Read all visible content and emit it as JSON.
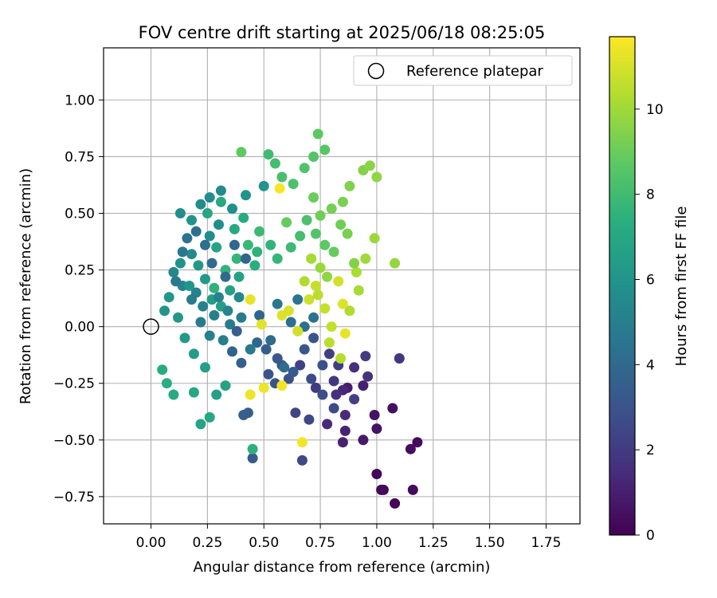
{
  "chart_data": {
    "type": "scatter",
    "title": "FOV centre drift starting at 2025/06/18 08:25:05",
    "xlabel": "Angular distance from reference (arcmin)",
    "ylabel": "Rotation from reference (arcmin)",
    "xlim": [
      -0.21,
      1.9
    ],
    "ylim": [
      -0.87,
      1.23
    ],
    "xticks": [
      "0.00",
      "0.25",
      "0.50",
      "0.75",
      "1.00",
      "1.25",
      "1.50",
      "1.75"
    ],
    "yticks": [
      "−0.75",
      "−0.50",
      "−0.25",
      "0.00",
      "0.25",
      "0.50",
      "0.75",
      "1.00"
    ],
    "grid": true,
    "legend": {
      "placement": "top-right",
      "entries": [
        "Reference platepar"
      ]
    },
    "colorbar": {
      "label": "Hours from first FF file",
      "range": [
        0,
        11.7
      ],
      "ticks": [
        "0",
        "2",
        "4",
        "6",
        "8",
        "10"
      ],
      "colormap": "viridis"
    },
    "reference_point": {
      "x": 0.0,
      "y": 0.0,
      "label": "Reference platepar"
    },
    "point_columns": [
      "x",
      "y",
      "hours"
    ],
    "points": [
      [
        1.08,
        -0.78,
        0.1
      ],
      [
        1.0,
        -0.65,
        0.2
      ],
      [
        1.03,
        -0.72,
        0.2
      ],
      [
        1.02,
        -0.72,
        0.3
      ],
      [
        1.16,
        -0.72,
        0.3
      ],
      [
        1.18,
        -0.51,
        0.3
      ],
      [
        1.15,
        -0.54,
        0.4
      ],
      [
        1.07,
        -0.36,
        0.5
      ],
      [
        0.99,
        -0.39,
        0.6
      ],
      [
        1.0,
        -0.45,
        0.6
      ],
      [
        0.94,
        -0.5,
        0.8
      ],
      [
        0.87,
        -0.27,
        0.9
      ],
      [
        0.94,
        -0.26,
        1.0
      ],
      [
        0.85,
        -0.51,
        1.1
      ],
      [
        0.86,
        -0.46,
        1.2
      ],
      [
        0.85,
        -0.28,
        1.3
      ],
      [
        0.78,
        -0.43,
        1.4
      ],
      [
        0.86,
        -0.39,
        1.5
      ],
      [
        0.9,
        -0.18,
        1.6
      ],
      [
        1.1,
        -0.14,
        1.8
      ],
      [
        0.81,
        -0.24,
        1.9
      ],
      [
        0.95,
        -0.13,
        2.0
      ],
      [
        0.73,
        -0.27,
        2.0
      ],
      [
        0.83,
        -0.17,
        2.1
      ],
      [
        0.79,
        -0.12,
        2.2
      ],
      [
        0.66,
        -0.17,
        2.3
      ],
      [
        0.64,
        -0.38,
        2.4
      ],
      [
        0.7,
        -0.41,
        2.5
      ],
      [
        0.67,
        -0.59,
        2.6
      ],
      [
        0.71,
        -0.23,
        2.7
      ],
      [
        0.76,
        -0.3,
        2.8
      ],
      [
        0.61,
        -0.23,
        2.9
      ],
      [
        0.52,
        -0.21,
        3.0
      ],
      [
        0.55,
        -0.25,
        3.0
      ],
      [
        0.58,
        -0.17,
        3.1
      ],
      [
        0.68,
        -0.1,
        3.2
      ],
      [
        0.63,
        -0.2,
        3.3
      ],
      [
        0.45,
        -0.58,
        3.3
      ],
      [
        0.43,
        -0.38,
        3.4
      ],
      [
        0.41,
        -0.39,
        3.5
      ],
      [
        0.4,
        -0.16,
        3.6
      ],
      [
        0.36,
        -0.11,
        3.7
      ],
      [
        0.48,
        0.05,
        3.8
      ],
      [
        0.47,
        -0.07,
        3.9
      ],
      [
        0.53,
        -0.06,
        4.0
      ],
      [
        0.59,
        -0.18,
        4.1
      ],
      [
        0.62,
        0.02,
        4.2
      ],
      [
        0.68,
        0.0,
        4.3
      ],
      [
        0.72,
        0.04,
        4.4
      ],
      [
        0.65,
        0.12,
        4.5
      ],
      [
        0.56,
        0.1,
        4.6
      ],
      [
        0.44,
        -0.1,
        4.7
      ],
      [
        0.4,
        0.04,
        4.8
      ],
      [
        0.35,
        0.01,
        4.9
      ],
      [
        0.32,
        -0.06,
        5.0
      ],
      [
        0.28,
        0.05,
        5.0
      ],
      [
        0.23,
        0.09,
        5.1
      ],
      [
        0.2,
        0.15,
        5.2
      ],
      [
        0.14,
        0.18,
        5.3
      ],
      [
        0.1,
        0.24,
        5.4
      ],
      [
        0.18,
        0.32,
        5.5
      ],
      [
        0.26,
        0.4,
        5.6
      ],
      [
        0.3,
        0.45,
        5.7
      ],
      [
        0.36,
        0.52,
        5.8
      ],
      [
        0.42,
        0.58,
        5.9
      ],
      [
        0.5,
        0.62,
        6.0
      ],
      [
        0.06,
        0.07,
        6.0
      ],
      [
        0.08,
        0.13,
        6.1
      ],
      [
        0.12,
        0.04,
        6.2
      ],
      [
        0.15,
        -0.05,
        6.3
      ],
      [
        0.19,
        -0.12,
        6.4
      ],
      [
        0.24,
        -0.18,
        6.5
      ],
      [
        0.29,
        -0.3,
        6.6
      ],
      [
        0.33,
        -0.26,
        6.7
      ],
      [
        0.22,
        -0.43,
        6.8
      ],
      [
        0.26,
        -0.4,
        6.9
      ],
      [
        0.19,
        -0.29,
        7.0
      ],
      [
        0.1,
        -0.3,
        7.1
      ],
      [
        0.05,
        -0.19,
        7.2
      ],
      [
        0.07,
        -0.25,
        7.3
      ],
      [
        0.45,
        -0.54,
        7.4
      ],
      [
        0.28,
        0.17,
        7.5
      ],
      [
        0.33,
        0.25,
        7.6
      ],
      [
        0.38,
        0.3,
        7.7
      ],
      [
        0.43,
        0.36,
        7.8
      ],
      [
        0.48,
        0.42,
        7.9
      ],
      [
        0.52,
        0.76,
        8.0
      ],
      [
        0.55,
        0.72,
        8.1
      ],
      [
        0.58,
        0.66,
        8.2
      ],
      [
        0.63,
        0.63,
        8.3
      ],
      [
        0.68,
        0.7,
        8.4
      ],
      [
        0.72,
        0.75,
        8.5
      ],
      [
        0.77,
        0.78,
        8.6
      ],
      [
        0.74,
        0.85,
        8.7
      ],
      [
        0.4,
        0.77,
        8.8
      ],
      [
        0.6,
        0.46,
        8.9
      ],
      [
        0.72,
        0.57,
        9.0
      ],
      [
        0.75,
        0.49,
        9.1
      ],
      [
        0.8,
        0.52,
        9.2
      ],
      [
        0.85,
        0.55,
        9.3
      ],
      [
        0.88,
        0.62,
        9.4
      ],
      [
        0.94,
        0.69,
        9.5
      ],
      [
        0.97,
        0.71,
        9.6
      ],
      [
        1.0,
        0.66,
        9.7
      ],
      [
        1.08,
        0.28,
        9.8
      ],
      [
        0.99,
        0.39,
        9.9
      ],
      [
        0.95,
        0.3,
        10.0
      ],
      [
        0.92,
        0.16,
        10.1
      ],
      [
        0.91,
        0.24,
        10.2
      ],
      [
        0.88,
        0.07,
        10.3
      ],
      [
        0.84,
        -0.14,
        10.4
      ],
      [
        0.79,
        -0.07,
        10.5
      ],
      [
        0.8,
        0.0,
        10.6
      ],
      [
        0.73,
        0.18,
        10.7
      ],
      [
        0.7,
        0.12,
        10.8
      ],
      [
        0.65,
        -0.02,
        10.9
      ],
      [
        0.61,
        0.07,
        11.0
      ],
      [
        0.58,
        0.05,
        11.1
      ],
      [
        0.49,
        0.01,
        11.2
      ],
      [
        0.44,
        0.12,
        11.3
      ],
      [
        0.44,
        -0.3,
        11.4
      ],
      [
        0.5,
        -0.27,
        11.4
      ],
      [
        0.58,
        -0.26,
        11.5
      ],
      [
        0.67,
        -0.51,
        11.5
      ],
      [
        0.57,
        0.61,
        11.6
      ],
      [
        0.13,
        0.28,
        5.9
      ],
      [
        0.17,
        0.18,
        6.1
      ],
      [
        0.21,
        0.27,
        6.2
      ],
      [
        0.24,
        0.21,
        6.3
      ],
      [
        0.27,
        0.12,
        6.4
      ],
      [
        0.31,
        0.09,
        6.5
      ],
      [
        0.35,
        0.16,
        6.6
      ],
      [
        0.39,
        0.22,
        6.7
      ],
      [
        0.29,
        0.35,
        6.8
      ],
      [
        0.25,
        0.5,
        6.9
      ],
      [
        0.31,
        0.55,
        7.0
      ],
      [
        0.37,
        0.43,
        7.1
      ],
      [
        0.41,
        0.48,
        7.2
      ],
      [
        0.46,
        0.27,
        7.3
      ],
      [
        0.47,
        0.33,
        7.5
      ],
      [
        0.53,
        0.36,
        7.6
      ],
      [
        0.56,
        0.3,
        7.7
      ],
      [
        0.62,
        0.35,
        7.9
      ],
      [
        0.66,
        0.4,
        8.1
      ],
      [
        0.69,
        0.47,
        8.3
      ],
      [
        0.73,
        0.41,
        8.5
      ],
      [
        0.77,
        0.36,
        8.7
      ],
      [
        0.81,
        0.33,
        8.9
      ],
      [
        0.84,
        0.45,
        9.1
      ],
      [
        0.87,
        0.41,
        9.3
      ],
      [
        0.9,
        0.28,
        9.5
      ],
      [
        0.78,
        0.22,
        9.7
      ],
      [
        0.75,
        0.26,
        9.9
      ],
      [
        0.71,
        0.3,
        10.1
      ],
      [
        0.68,
        0.2,
        10.3
      ],
      [
        0.74,
        0.14,
        10.5
      ],
      [
        0.77,
        0.08,
        10.7
      ],
      [
        0.83,
        0.2,
        10.9
      ],
      [
        0.85,
        0.1,
        11.1
      ],
      [
        0.86,
        -0.03,
        11.3
      ],
      [
        0.2,
        0.42,
        4.3
      ],
      [
        0.24,
        0.36,
        4.2
      ],
      [
        0.27,
        0.28,
        4.1
      ],
      [
        0.33,
        0.22,
        4.0
      ],
      [
        0.37,
        0.36,
        3.9
      ],
      [
        0.42,
        0.3,
        3.8
      ],
      [
        0.16,
        0.39,
        4.5
      ],
      [
        0.14,
        0.33,
        4.6
      ],
      [
        0.11,
        0.2,
        4.7
      ],
      [
        0.18,
        0.12,
        4.8
      ],
      [
        0.22,
        0.02,
        4.9
      ],
      [
        0.26,
        -0.04,
        5.1
      ],
      [
        0.3,
        0.13,
        5.2
      ],
      [
        0.34,
        0.07,
        5.3
      ],
      [
        0.39,
        0.13,
        5.4
      ],
      [
        0.31,
        0.6,
        5.5
      ],
      [
        0.26,
        0.57,
        5.6
      ],
      [
        0.22,
        0.54,
        5.7
      ],
      [
        0.13,
        0.5,
        5.8
      ],
      [
        0.18,
        0.47,
        6.0
      ],
      [
        0.38,
        -0.02,
        3.5
      ],
      [
        0.51,
        -0.1,
        3.4
      ],
      [
        0.56,
        -0.14,
        3.2
      ],
      [
        0.72,
        -0.05,
        3.1
      ],
      [
        0.76,
        -0.17,
        2.9
      ],
      [
        0.81,
        -0.36,
        2.6
      ],
      [
        0.9,
        -0.32,
        2.2
      ],
      [
        0.96,
        -0.22,
        1.7
      ],
      [
        0.82,
        -0.3,
        1.6
      ]
    ]
  }
}
